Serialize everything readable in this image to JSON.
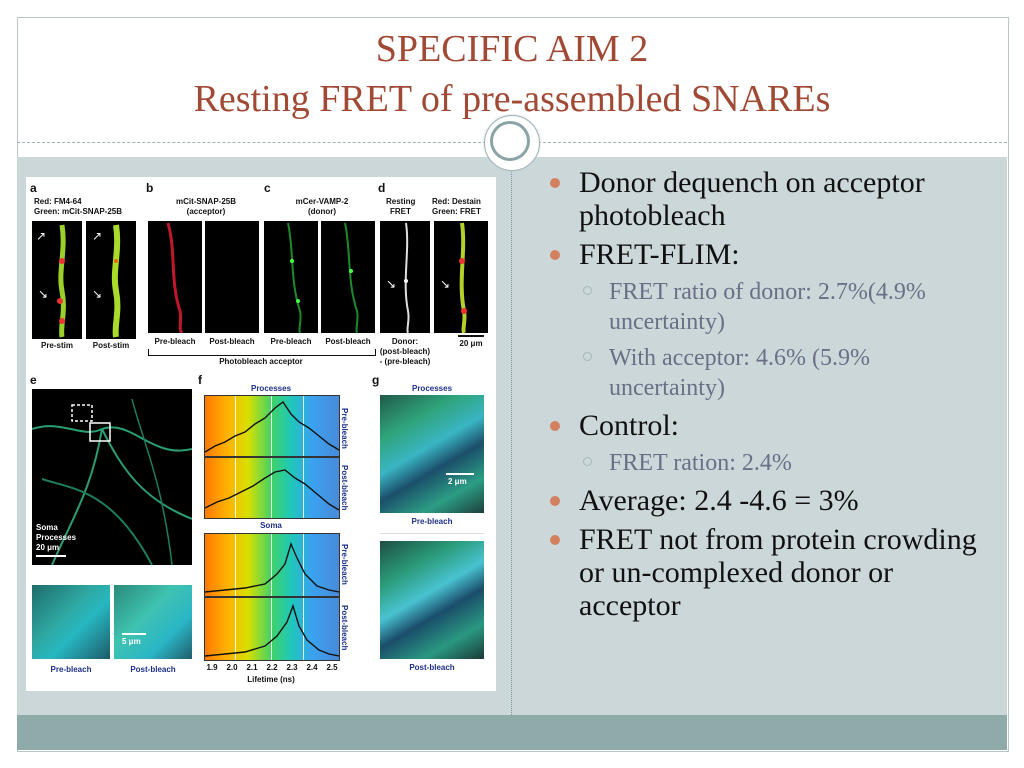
{
  "title": {
    "line1": "SPECIFIC AIM 2",
    "line2": "Resting FRET of pre-assembled SNAREs"
  },
  "bullets": [
    {
      "level": 1,
      "text": "Donor dequench on acceptor photobleach"
    },
    {
      "level": 1,
      "text": "FRET-FLIM:"
    },
    {
      "level": 2,
      "text": "FRET ratio of donor: 2.7%(4.9% uncertainty)"
    },
    {
      "level": 2,
      "text": "With acceptor: 4.6% (5.9% uncertainty)"
    },
    {
      "level": 1,
      "text": "Control:"
    },
    {
      "level": 2,
      "text": "FRET ration: 2.4%"
    },
    {
      "level": 1,
      "text": "Average: 2.4 -4.6 = 3%"
    },
    {
      "level": 1,
      "text": "FRET not from protein crowding or un-complexed donor or acceptor"
    }
  ],
  "figure": {
    "panel_a": {
      "letter": "a",
      "label_red": "Red: FM4-64",
      "label_green": "Green: mCit-SNAP-25B",
      "cap_left": "Pre-stim",
      "cap_right": "Post-stim"
    },
    "panel_b": {
      "letter": "b",
      "title": "mCit-SNAP-25B",
      "subtitle": "(acceptor)",
      "cap_left": "Pre-bleach",
      "cap_right": "Post-bleach"
    },
    "panel_c": {
      "letter": "c",
      "title": "mCer-VAMP-2",
      "subtitle": "(donor)",
      "cap_left": "Pre-bleach",
      "cap_right": "Post-bleach"
    },
    "photobleach_caption": "Photobleach acceptor",
    "panel_d": {
      "letter": "d",
      "title_left_1": "Resting",
      "title_left_2": "FRET",
      "title_right_1": "Red: Destain",
      "title_right_2": "Green: FRET",
      "cap_1": "Donor:",
      "cap_2": "(post-bleach)",
      "cap_3": "- (pre-bleach)",
      "scale": "20 μm"
    },
    "panel_e": {
      "letter": "e",
      "legend_soma": "Soma",
      "legend_processes": "Processes",
      "scale": "20 μm",
      "scale_small": "5 μm",
      "cap_left": "Pre-bleach",
      "cap_right": "Post-bleach"
    },
    "panel_f": {
      "letter": "f",
      "title_processes": "Processes",
      "title_soma": "Soma",
      "side_labels": [
        "Pre-bleach",
        "Post-bleach",
        "Pre-bleach",
        "Post-bleach"
      ],
      "ticks": [
        "1.9",
        "2.0",
        "2.1",
        "2.2",
        "2.3",
        "2.4",
        "2.5"
      ],
      "xlabel": "Lifetime (ns)"
    },
    "panel_g": {
      "letter": "g",
      "title": "Processes",
      "scale": "2 μm",
      "cap_top": "Pre-bleach",
      "cap_bottom": "Post-bleach"
    }
  }
}
